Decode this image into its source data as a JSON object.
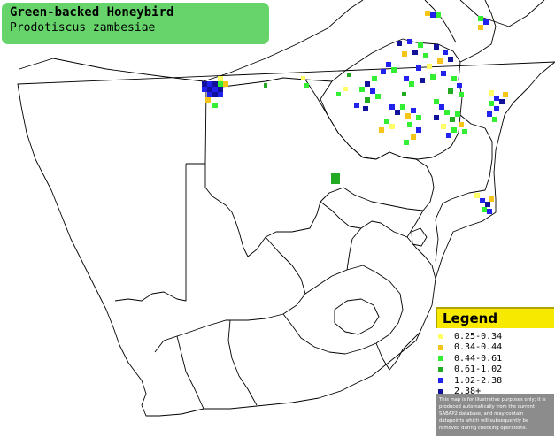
{
  "title": {
    "common_name": "Green-backed Honeybird",
    "scientific_name": "Prodotiscus zambesiae"
  },
  "legend": {
    "heading": "Legend",
    "items": [
      {
        "label": "0.25-0.34",
        "color": "#ffff66"
      },
      {
        "label": "0.34-0.44",
        "color": "#f5c518"
      },
      {
        "label": "0.44-0.61",
        "color": "#33ee33"
      },
      {
        "label": "0.61-1.02",
        "color": "#22aa22"
      },
      {
        "label": "1.02-2.38",
        "color": "#2222ee"
      },
      {
        "label": "2.38+",
        "color": "#111199"
      }
    ],
    "disclaimer": "This map is for illustrative purposes only; it is produced automatically from the current SABAP2 database, and may contain datapoints which will subsequently be removed during checking operations."
  },
  "map_colors": {
    "title_background": "#66d46a",
    "legend_header": "#f7ea00",
    "border_line": "#000000",
    "land": "#ffffff"
  }
}
